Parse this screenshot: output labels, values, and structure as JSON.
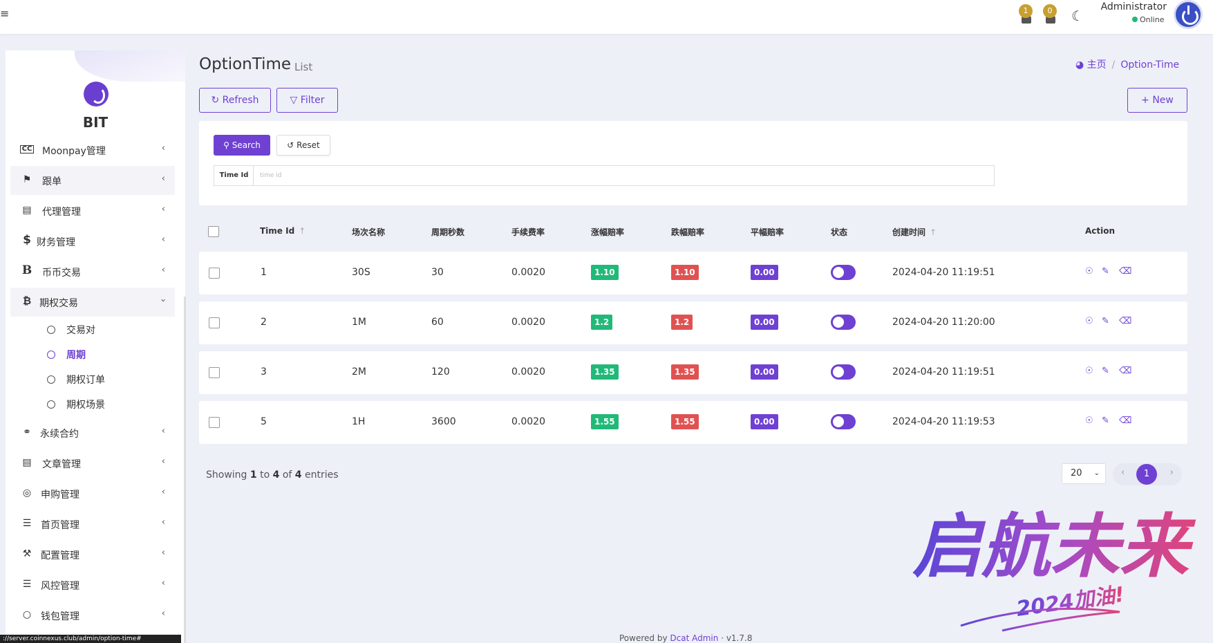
{
  "header": {
    "notifications": [
      {
        "count": "1",
        "icon": "bell-icon"
      },
      {
        "count": "0",
        "icon": "bell-icon"
      }
    ],
    "user": {
      "name": "Administrator",
      "status": "Online"
    }
  },
  "sidebar": {
    "brand": "BIT",
    "items": [
      {
        "label": "Moonpay管理",
        "icon": "cc-icon"
      },
      {
        "label": "跟单",
        "icon": "flag-icon"
      },
      {
        "label": "代理管理",
        "icon": "id-card-icon"
      },
      {
        "label": "财务管理",
        "icon": "dollar-icon"
      },
      {
        "label": "币币交易",
        "icon": "bitcoin-icon"
      },
      {
        "label": "期权交易",
        "icon": "bitcoin-icon"
      },
      {
        "label": "永续合约",
        "icon": "link-icon"
      },
      {
        "label": "文章管理",
        "icon": "newspaper-icon"
      },
      {
        "label": "申购管理",
        "icon": "lifebuoy-icon"
      },
      {
        "label": "首页管理",
        "icon": "list-icon"
      },
      {
        "label": "配置管理",
        "icon": "wrench-icon"
      },
      {
        "label": "风控管理",
        "icon": "list-indent-icon"
      },
      {
        "label": "钱包管理",
        "icon": "circle-icon"
      }
    ],
    "subitems": [
      "交易对",
      "周期",
      "期权订单",
      "期权场景"
    ],
    "active_sub": "周期"
  },
  "page": {
    "title": "OptionTime",
    "subtitle": "List",
    "breadcrumb": {
      "home": "主页",
      "current": "Option-Time"
    }
  },
  "toolbar": {
    "refresh": "Refresh",
    "filter": "Filter",
    "new": "New"
  },
  "filter": {
    "search": "Search",
    "reset": "Reset",
    "label": "Time Id",
    "placeholder": "time id"
  },
  "table": {
    "columns": [
      "Time Id",
      "场次名称",
      "周期秒数",
      "手续费率",
      "涨幅赔率",
      "跌幅赔率",
      "平幅赔率",
      "状态",
      "创建时间",
      "Action"
    ],
    "rows": [
      {
        "id": "1",
        "name": "30S",
        "seconds": "30",
        "fee": "0.0020",
        "up": "1.10",
        "down": "1.10",
        "flat": "0.00",
        "status": true,
        "created": "2024-04-20 11:19:51"
      },
      {
        "id": "2",
        "name": "1M",
        "seconds": "60",
        "fee": "0.0020",
        "up": "1.2",
        "down": "1.2",
        "flat": "0.00",
        "status": true,
        "created": "2024-04-20 11:20:00"
      },
      {
        "id": "3",
        "name": "2M",
        "seconds": "120",
        "fee": "0.0020",
        "up": "1.35",
        "down": "1.35",
        "flat": "0.00",
        "status": true,
        "created": "2024-04-20 11:19:51"
      },
      {
        "id": "5",
        "name": "1H",
        "seconds": "3600",
        "fee": "0.0020",
        "up": "1.55",
        "down": "1.55",
        "flat": "0.00",
        "status": true,
        "created": "2024-04-20 11:19:53"
      }
    ]
  },
  "pagination": {
    "showing_prefix": "Showing",
    "from": "1",
    "to_word": "to",
    "to": "4",
    "of_word": "of",
    "total": "4",
    "suffix": "entries",
    "page_size": "20",
    "current_page": "1"
  },
  "footer": {
    "prefix": "Powered by",
    "link": "Dcat Admin",
    "version": "· v1.7.8"
  },
  "statusbar": {
    "url": "://server.coinnexus.club/admin/option-time#"
  },
  "watermark": {
    "text_main": "启航未来",
    "text_sub": "2024加油!"
  },
  "colors": {
    "primary": "#6e41d3",
    "green": "#21b978",
    "red": "#e05252",
    "bg": "#eef0f8"
  }
}
